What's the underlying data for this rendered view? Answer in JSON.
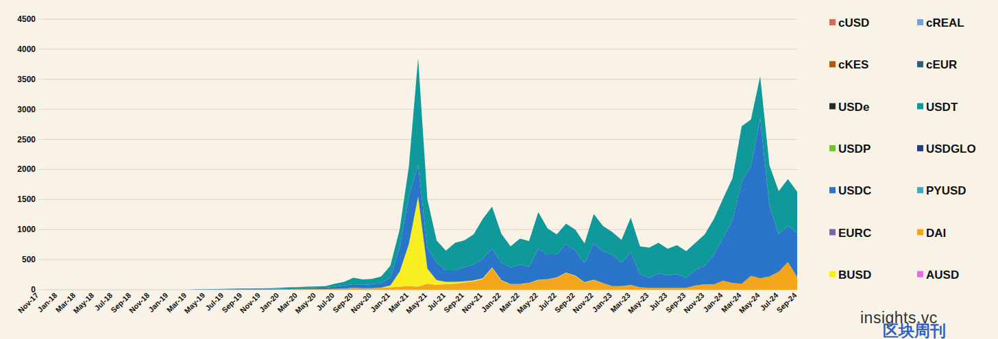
{
  "chart_data": {
    "type": "area",
    "stacked": true,
    "grid": true,
    "legend": "right",
    "annotations": [
      "insights.vc",
      "区块周刊"
    ],
    "ylim": [
      0,
      4500
    ],
    "yticks": [
      0,
      500,
      1000,
      1500,
      2000,
      2500,
      3000,
      3500,
      4000,
      4500
    ],
    "categories": [
      "Nov-17",
      null,
      "Jan-18",
      null,
      "Mar-18",
      null,
      "May-18",
      null,
      "Jul-18",
      null,
      "Sep-18",
      null,
      "Nov-18",
      null,
      "Jan-19",
      null,
      "Mar-19",
      null,
      "May-19",
      null,
      "Jul-19",
      null,
      "Sep-19",
      null,
      "Nov-19",
      null,
      "Jan-20",
      null,
      "Mar-20",
      null,
      "May-20",
      null,
      "Jul-20",
      null,
      "Sep-20",
      null,
      "Nov-20",
      null,
      "Jan-21",
      null,
      "Mar-21",
      null,
      "May-21",
      null,
      "Jul-21",
      null,
      "Sep-21",
      null,
      "Nov-21",
      null,
      "Jan-22",
      null,
      "Mar-22",
      null,
      "May-22",
      null,
      "Jul-22",
      null,
      "Sep-22",
      null,
      "Nov-22",
      null,
      "Jan-23",
      null,
      "Mar-23",
      null,
      "May-23",
      null,
      "Jul-23",
      null,
      "Sep-23",
      null,
      "Nov-23",
      null,
      "Jan-24",
      null,
      "Mar-24",
      null,
      "May-24",
      null,
      "Jul-24",
      null,
      "Sep-24"
    ],
    "series": [
      {
        "name": "cUSD",
        "color": "#c87060",
        "values": [
          0,
          0,
          0,
          0,
          0,
          0,
          0,
          0,
          0,
          0,
          0,
          0,
          0,
          0,
          0,
          0,
          0,
          0,
          0,
          0,
          0,
          0,
          0,
          0,
          0,
          0,
          0,
          0,
          0,
          0,
          0,
          0,
          0,
          0,
          0,
          0,
          0,
          0,
          0,
          0,
          0,
          0,
          0,
          0,
          0,
          0,
          0,
          0,
          0,
          0,
          0,
          0,
          0,
          0,
          0,
          0,
          0,
          0,
          0,
          0,
          0,
          0,
          0,
          0,
          0,
          0,
          0,
          0,
          0,
          0,
          0,
          0,
          0,
          0,
          0,
          0,
          0,
          0,
          0,
          0,
          0,
          0,
          0
        ]
      },
      {
        "name": "cREAL",
        "color": "#7aa0d0",
        "values": [
          0,
          0,
          0,
          0,
          0,
          0,
          0,
          0,
          0,
          0,
          0,
          0,
          0,
          0,
          0,
          0,
          0,
          0,
          0,
          0,
          0,
          0,
          0,
          0,
          0,
          0,
          0,
          0,
          0,
          0,
          0,
          0,
          0,
          0,
          0,
          0,
          0,
          0,
          0,
          0,
          0,
          0,
          0,
          0,
          0,
          0,
          0,
          0,
          0,
          0,
          0,
          0,
          0,
          0,
          0,
          0,
          0,
          0,
          0,
          0,
          0,
          0,
          0,
          0,
          0,
          0,
          0,
          0,
          0,
          0,
          0,
          0,
          0,
          0,
          0,
          0,
          0,
          0,
          0,
          0,
          0,
          0,
          0
        ]
      },
      {
        "name": "cKES",
        "color": "#b3560a",
        "values": [
          0,
          0,
          0,
          0,
          0,
          0,
          0,
          0,
          0,
          0,
          0,
          0,
          0,
          0,
          0,
          0,
          0,
          0,
          0,
          0,
          0,
          0,
          0,
          0,
          0,
          0,
          0,
          0,
          0,
          0,
          0,
          0,
          0,
          0,
          0,
          0,
          0,
          0,
          0,
          0,
          0,
          0,
          0,
          0,
          0,
          0,
          0,
          0,
          0,
          0,
          0,
          0,
          0,
          0,
          0,
          0,
          0,
          0,
          0,
          0,
          0,
          0,
          0,
          0,
          0,
          0,
          0,
          0,
          0,
          0,
          0,
          0,
          0,
          0,
          0,
          0,
          0,
          0,
          0,
          0,
          0,
          0,
          0
        ]
      },
      {
        "name": "cEUR",
        "color": "#2f5f73",
        "values": [
          0,
          0,
          0,
          0,
          0,
          0,
          0,
          0,
          0,
          0,
          0,
          0,
          0,
          0,
          0,
          0,
          0,
          0,
          0,
          0,
          0,
          0,
          0,
          0,
          0,
          0,
          0,
          0,
          0,
          0,
          0,
          0,
          0,
          0,
          0,
          0,
          0,
          0,
          0,
          0,
          0,
          0,
          0,
          0,
          0,
          0,
          0,
          0,
          0,
          0,
          0,
          0,
          0,
          0,
          0,
          0,
          0,
          0,
          0,
          0,
          0,
          0,
          0,
          0,
          0,
          0,
          0,
          0,
          0,
          0,
          0,
          0,
          0,
          0,
          0,
          0,
          0,
          0,
          0,
          0,
          0,
          0,
          0
        ]
      },
      {
        "name": "USDe",
        "color": "#2a2a2a",
        "values": [
          0,
          0,
          0,
          0,
          0,
          0,
          0,
          0,
          0,
          0,
          0,
          0,
          0,
          0,
          0,
          0,
          0,
          0,
          0,
          0,
          0,
          0,
          0,
          0,
          0,
          0,
          0,
          0,
          0,
          0,
          0,
          0,
          0,
          0,
          0,
          0,
          0,
          0,
          0,
          0,
          0,
          0,
          0,
          0,
          0,
          0,
          0,
          0,
          0,
          0,
          0,
          0,
          0,
          0,
          0,
          0,
          0,
          0,
          0,
          0,
          0,
          0,
          0,
          0,
          0,
          0,
          0,
          0,
          0,
          0,
          0,
          0,
          0,
          0,
          0,
          0,
          0,
          0,
          0,
          0,
          0,
          0,
          0
        ]
      },
      {
        "name": "USDT",
        "color": "#10999a",
        "values": [
          0,
          0,
          0,
          0,
          0,
          0,
          0,
          0,
          0,
          0,
          0,
          0,
          0,
          0,
          0,
          0,
          0,
          2,
          3,
          5,
          6,
          8,
          8,
          8,
          9,
          10,
          12,
          18,
          17,
          22,
          25,
          25,
          50,
          60,
          110,
          90,
          90,
          110,
          200,
          300,
          500,
          1770,
          800,
          370,
          330,
          460,
          440,
          500,
          660,
          700,
          480,
          350,
          430,
          430,
          610,
          440,
          340,
          340,
          350,
          330,
          490,
          420,
          380,
          380,
          580,
          460,
          500,
          510,
          440,
          480,
          440,
          450,
          520,
          600,
          650,
          700,
          920,
          780,
          700,
          670,
          720,
          780,
          680
        ]
      },
      {
        "name": "USDP",
        "color": "#72c030",
        "values": [
          0,
          0,
          0,
          0,
          0,
          0,
          0,
          0,
          0,
          0,
          0,
          0,
          0,
          0,
          0,
          0,
          0,
          0,
          0,
          0,
          0,
          0,
          0,
          0,
          0,
          0,
          0,
          0,
          0,
          0,
          0,
          0,
          0,
          0,
          0,
          0,
          0,
          0,
          0,
          0,
          0,
          0,
          0,
          0,
          0,
          0,
          0,
          0,
          0,
          0,
          0,
          0,
          0,
          0,
          0,
          0,
          0,
          0,
          0,
          0,
          0,
          0,
          0,
          0,
          0,
          0,
          0,
          0,
          0,
          0,
          0,
          0,
          0,
          0,
          0,
          0,
          0,
          0,
          0,
          0,
          0,
          0,
          0
        ]
      },
      {
        "name": "USDGLO",
        "color": "#2a3f7a",
        "values": [
          0,
          0,
          0,
          0,
          0,
          0,
          0,
          0,
          0,
          0,
          0,
          0,
          0,
          0,
          0,
          0,
          0,
          0,
          0,
          0,
          0,
          0,
          0,
          0,
          0,
          0,
          0,
          0,
          0,
          0,
          0,
          0,
          0,
          0,
          0,
          0,
          0,
          0,
          0,
          0,
          0,
          0,
          0,
          0,
          0,
          0,
          0,
          0,
          0,
          0,
          0,
          0,
          0,
          0,
          0,
          0,
          0,
          0,
          0,
          0,
          0,
          0,
          0,
          0,
          0,
          0,
          0,
          0,
          0,
          0,
          0,
          0,
          0,
          0,
          0,
          0,
          0,
          0,
          0,
          0,
          0,
          0,
          0
        ]
      },
      {
        "name": "USDC",
        "color": "#2a74c9",
        "values": [
          0,
          0,
          0,
          0,
          0,
          0,
          0,
          0,
          0,
          0,
          0,
          0,
          0,
          0,
          0,
          0,
          0,
          3,
          4,
          6,
          7,
          8,
          9,
          9,
          10,
          11,
          13,
          17,
          17,
          20,
          20,
          25,
          35,
          50,
          60,
          55,
          65,
          75,
          130,
          400,
          790,
          530,
          350,
          290,
          190,
          190,
          240,
          265,
          330,
          310,
          290,
          275,
          325,
          265,
          515,
          405,
          375,
          475,
          415,
          315,
          605,
          530,
          520,
          390,
          540,
          220,
          170,
          240,
          210,
          230,
          170,
          260,
          310,
          490,
          720,
          1040,
          1700,
          1820,
          2660,
          1180,
          620,
          600,
          740
        ]
      },
      {
        "name": "PYUSD",
        "color": "#3aa9c4",
        "values": [
          0,
          0,
          0,
          0,
          0,
          0,
          0,
          0,
          0,
          0,
          0,
          0,
          0,
          0,
          0,
          0,
          0,
          0,
          0,
          0,
          0,
          0,
          0,
          0,
          0,
          0,
          0,
          0,
          0,
          0,
          0,
          0,
          0,
          0,
          0,
          0,
          0,
          0,
          0,
          0,
          0,
          0,
          0,
          0,
          0,
          0,
          0,
          0,
          0,
          0,
          0,
          0,
          0,
          0,
          0,
          0,
          0,
          0,
          0,
          0,
          0,
          0,
          0,
          0,
          0,
          0,
          0,
          0,
          0,
          0,
          0,
          0,
          0,
          0,
          0,
          0,
          0,
          0,
          0,
          0,
          0,
          0,
          0
        ]
      },
      {
        "name": "EURC",
        "color": "#7a64a8",
        "values": [
          0,
          0,
          0,
          0,
          0,
          0,
          0,
          0,
          0,
          0,
          0,
          0,
          0,
          0,
          0,
          0,
          0,
          0,
          0,
          0,
          0,
          0,
          0,
          0,
          0,
          0,
          0,
          0,
          0,
          0,
          0,
          0,
          0,
          0,
          0,
          0,
          0,
          0,
          0,
          0,
          0,
          0,
          0,
          0,
          0,
          0,
          0,
          0,
          0,
          0,
          0,
          0,
          0,
          0,
          0,
          0,
          0,
          0,
          0,
          0,
          0,
          0,
          0,
          0,
          0,
          0,
          0,
          0,
          0,
          0,
          0,
          0,
          0,
          0,
          0,
          0,
          0,
          0,
          0,
          0,
          0,
          0,
          0
        ]
      },
      {
        "name": "DAI",
        "color": "#f3a51c",
        "values": [
          0,
          0,
          0,
          0,
          0,
          0,
          0,
          0,
          0,
          0,
          0,
          0,
          0,
          0,
          0,
          0,
          0,
          0,
          1,
          1,
          2,
          2,
          3,
          3,
          3,
          4,
          5,
          5,
          8,
          8,
          10,
          10,
          15,
          20,
          30,
          25,
          25,
          30,
          40,
          50,
          60,
          50,
          100,
          80,
          90,
          100,
          120,
          140,
          180,
          360,
          150,
          90,
          90,
          110,
          160,
          170,
          200,
          280,
          230,
          120,
          160,
          110,
          60,
          60,
          80,
          40,
          30,
          30,
          30,
          30,
          30,
          70,
          90,
          90,
          150,
          110,
          100,
          230,
          190,
          220,
          300,
          460,
          210
        ]
      },
      {
        "name": "BUSD",
        "color": "#f9ee20",
        "values": [
          0,
          0,
          0,
          0,
          0,
          0,
          0,
          0,
          0,
          0,
          0,
          0,
          0,
          0,
          0,
          0,
          0,
          0,
          0,
          0,
          0,
          0,
          0,
          0,
          0,
          0,
          0,
          0,
          0,
          0,
          0,
          0,
          0,
          0,
          0,
          0,
          0,
          5,
          30,
          250,
          700,
          1500,
          250,
          80,
          40,
          30,
          20,
          15,
          10,
          10,
          10,
          5,
          5,
          5,
          5,
          5,
          5,
          5,
          5,
          5,
          5,
          0,
          0,
          0,
          0,
          0,
          0,
          0,
          0,
          0,
          0,
          0,
          0,
          0,
          0,
          0,
          0,
          0,
          0,
          0,
          0,
          0,
          0
        ]
      },
      {
        "name": "AUSD",
        "color": "#e070e0",
        "values": [
          0,
          0,
          0,
          0,
          0,
          0,
          0,
          0,
          0,
          0,
          0,
          0,
          0,
          0,
          0,
          0,
          0,
          0,
          0,
          0,
          0,
          0,
          0,
          0,
          0,
          0,
          0,
          0,
          0,
          0,
          0,
          0,
          0,
          0,
          0,
          0,
          0,
          0,
          0,
          0,
          0,
          0,
          0,
          0,
          0,
          0,
          0,
          0,
          0,
          0,
          0,
          0,
          0,
          0,
          0,
          0,
          0,
          0,
          0,
          0,
          0,
          0,
          0,
          0,
          0,
          0,
          0,
          0,
          0,
          0,
          0,
          0,
          0,
          0,
          0,
          0,
          0,
          0,
          0,
          0,
          0,
          0,
          0
        ]
      }
    ]
  }
}
